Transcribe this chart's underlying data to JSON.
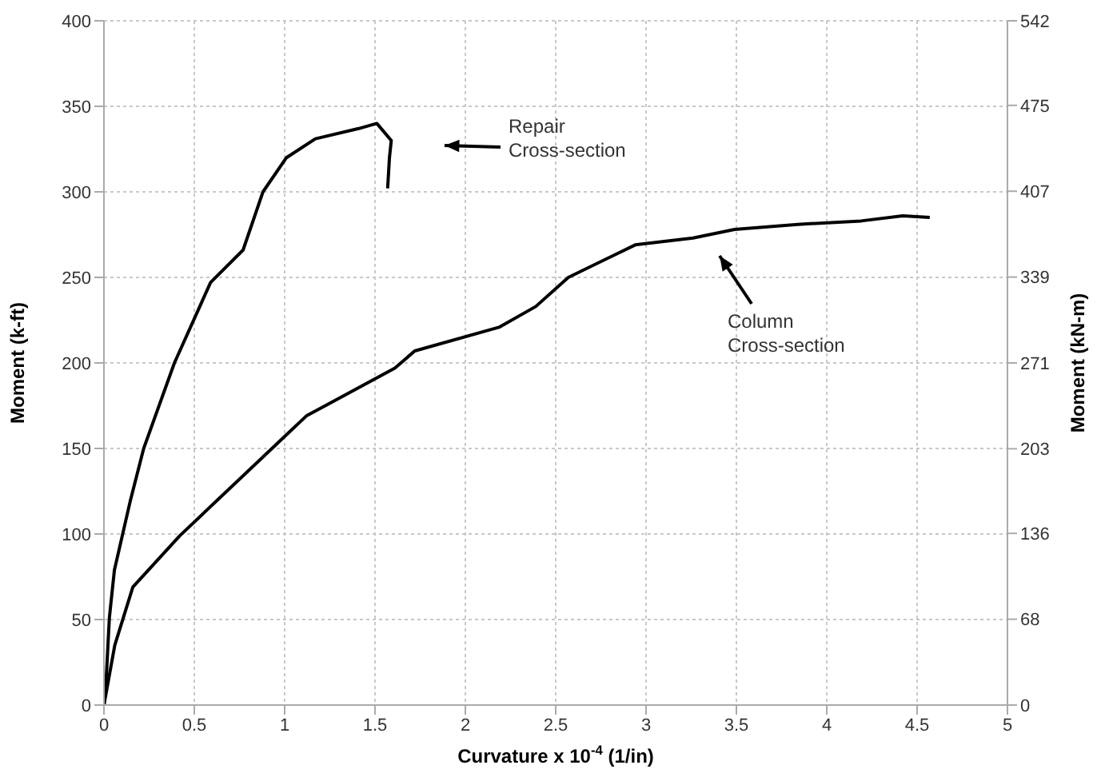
{
  "chart_data": {
    "type": "line",
    "xlabel": "Curvature x 10$^{-4}$ (1/in)",
    "ylabel": "Moment (k-ft)",
    "y2label": "Moment (kN-m)",
    "xlim": [
      0,
      5
    ],
    "xticks": [
      0,
      0.5,
      1,
      1.5,
      2,
      2.5,
      3,
      3.5,
      4,
      4.5,
      5
    ],
    "ylim": [
      0,
      400
    ],
    "yticks": [
      0,
      50,
      100,
      150,
      200,
      250,
      300,
      350,
      400
    ],
    "y2lim": [
      0,
      542
    ],
    "y2ticks": [
      0,
      68,
      136,
      203,
      271,
      339,
      407,
      475,
      542
    ],
    "grid": true,
    "marker": "none",
    "line_style": "solid",
    "series": [
      {
        "color": "#000000",
        "x": [
          0,
          0.01,
          0.03,
          0.058,
          0.145,
          0.22,
          0.39,
          0.59,
          0.77,
          0.88,
          1.01,
          1.17,
          1.41,
          1.51,
          1.59,
          1.58,
          1.57
        ],
        "values": [
          0,
          10,
          51,
          79,
          119,
          150,
          200,
          247,
          266,
          300,
          320,
          331,
          337,
          340,
          330,
          320,
          302
        ]
      },
      {
        "color": "#000000",
        "x": [
          0,
          0.06,
          0.16,
          0.42,
          1.0,
          1.12,
          1.61,
          1.72,
          2.19,
          2.39,
          2.57,
          2.94,
          3.26,
          3.49,
          3.84,
          4.19,
          4.42,
          4.57
        ],
        "values": [
          0,
          35,
          69,
          99,
          157,
          169,
          197,
          207,
          221,
          233,
          250,
          269,
          273,
          278,
          281,
          283,
          286,
          285
        ]
      }
    ],
    "annotations": [
      "Repair\nCross-section",
      "Column\nCross-section"
    ]
  }
}
